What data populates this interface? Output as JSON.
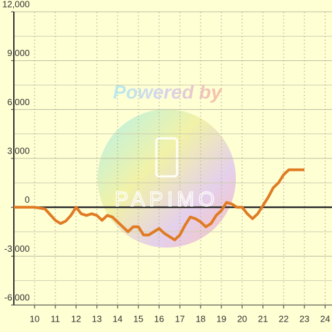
{
  "chart_data": {
    "type": "line",
    "x": [
      9,
      10,
      10.5,
      11,
      11.25,
      11.5,
      11.75,
      12,
      12.25,
      12.5,
      12.75,
      13,
      13.25,
      13.5,
      13.75,
      14,
      14.25,
      14.5,
      14.75,
      15,
      15.25,
      15.5,
      15.75,
      16,
      16.25,
      16.5,
      16.75,
      17,
      17.25,
      17.5,
      17.75,
      18,
      18.25,
      18.5,
      18.75,
      19,
      19.25,
      19.5,
      19.75,
      20,
      20.25,
      20.5,
      20.75,
      21,
      21.25,
      21.5,
      21.75,
      22,
      22.25,
      22.5,
      23
    ],
    "series": [
      {
        "color": "#e07b24",
        "values": [
          0,
          0,
          -100,
          -800,
          -1000,
          -850,
          -500,
          0,
          -400,
          -500,
          -400,
          -500,
          -800,
          -500,
          -600,
          -900,
          -1200,
          -1500,
          -1200,
          -1200,
          -1700,
          -1700,
          -1500,
          -1300,
          -1600,
          -1800,
          -2000,
          -1700,
          -1100,
          -600,
          -700,
          -900,
          -1200,
          -1000,
          -500,
          -200,
          300,
          200,
          0,
          0,
          -400,
          -700,
          -400,
          100,
          600,
          1200,
          1500,
          2000,
          2300,
          2300,
          2300
        ]
      }
    ],
    "xlim": [
      9,
      24.33
    ],
    "xticks": [
      10,
      11,
      12,
      13,
      14,
      15,
      16,
      17,
      18,
      19,
      20,
      21,
      22,
      23,
      24
    ],
    "ylim": [
      -6000,
      12000
    ],
    "yticks": [
      {
        "value": -6000,
        "label": "-6,000"
      },
      {
        "value": -3000,
        "label": "-3,000"
      },
      0,
      {
        "value": 3000,
        "label": "3,000"
      },
      {
        "value": 6000,
        "label": "6,000"
      },
      {
        "value": 9000,
        "label": "9,000"
      },
      {
        "value": 12000,
        "label": "12,000"
      }
    ],
    "y_minor_ticks": [
      -4500,
      -1500,
      1500,
      4500,
      7500,
      10500
    ],
    "grid": true,
    "annotations": [
      "Powered by",
      "PAPIMO"
    ]
  }
}
